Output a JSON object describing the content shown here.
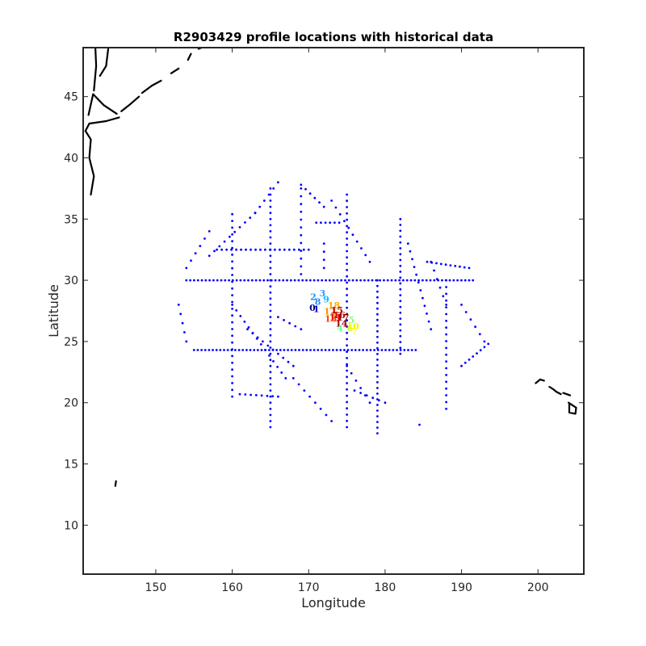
{
  "chart_data": {
    "type": "scatter",
    "title": "R2903429 profile locations with historical data",
    "xlabel": "Longitude",
    "ylabel": "Latitude",
    "xlim": [
      140.5,
      206
    ],
    "ylim": [
      6,
      49
    ],
    "xticks": [
      150,
      160,
      170,
      180,
      190,
      200
    ],
    "yticks": [
      10,
      15,
      20,
      25,
      30,
      35,
      40,
      45
    ],
    "grid": false,
    "series": [
      {
        "kind": "historical",
        "color": "#0000ff",
        "tracks": [
          {
            "from": [
              154,
              30
            ],
            "to": [
              191.5,
              30
            ],
            "n": 75
          },
          {
            "from": [
              155,
              24.3
            ],
            "to": [
              184,
              24.3
            ],
            "n": 60
          },
          {
            "from": [
              165,
              37.5
            ],
            "to": [
              165,
              18
            ],
            "n": 40
          },
          {
            "from": [
              179,
              30
            ],
            "to": [
              179,
              17.5
            ],
            "n": 28
          },
          {
            "from": [
              182,
              35
            ],
            "to": [
              182,
              24
            ],
            "n": 24
          },
          {
            "from": [
              175,
              37
            ],
            "to": [
              175,
              18
            ],
            "n": 38
          },
          {
            "from": [
              188,
              30
            ],
            "to": [
              188,
              19.5
            ],
            "n": 20
          },
          {
            "from": [
              160,
              35.4
            ],
            "to": [
              160,
              20.5
            ],
            "n": 28
          },
          {
            "from": [
              158,
              32.5
            ],
            "to": [
              170,
              32.5
            ],
            "n": 20
          },
          {
            "from": [
              171,
              34.7
            ],
            "to": [
              174,
              34.7
            ],
            "n": 6
          },
          {
            "from": [
              154,
              31
            ],
            "to": [
              157,
              34
            ],
            "n": 6
          },
          {
            "from": [
              157,
              32
            ],
            "to": [
              163,
              35.5
            ],
            "n": 10
          },
          {
            "from": [
              163,
              35.5
            ],
            "to": [
              166,
              38
            ],
            "n": 6
          },
          {
            "from": [
              169,
              37.8
            ],
            "to": [
              172,
              36
            ],
            "n": 6
          },
          {
            "from": [
              173,
              36.5
            ],
            "to": [
              178,
              31.5
            ],
            "n": 10
          },
          {
            "from": [
              183,
              33
            ],
            "to": [
              186,
              26
            ],
            "n": 12
          },
          {
            "from": [
              160,
              28
            ],
            "to": [
              167,
              22
            ],
            "n": 14
          },
          {
            "from": [
              162,
              26
            ],
            "to": [
              168,
              23
            ],
            "n": 10
          },
          {
            "from": [
              168,
              22
            ],
            "to": [
              173,
              18.5
            ],
            "n": 8
          },
          {
            "from": [
              175,
              23
            ],
            "to": [
              178,
              20
            ],
            "n": 6
          },
          {
            "from": [
              190,
              23
            ],
            "to": [
              193.5,
              24.8
            ],
            "n": 8
          },
          {
            "from": [
              153,
              28
            ],
            "to": [
              154,
              25
            ],
            "n": 5
          },
          {
            "from": [
              169,
              37.5
            ],
            "to": [
              169,
              30.5
            ],
            "n": 12
          },
          {
            "from": [
              172,
              33
            ],
            "to": [
              172,
              31
            ],
            "n": 4
          },
          {
            "from": [
              166,
              27
            ],
            "to": [
              169,
              26
            ],
            "n": 5
          },
          {
            "from": [
              185.5,
              31.5
            ],
            "to": [
              191,
              31
            ],
            "n": 10
          },
          {
            "from": [
              190,
              28
            ],
            "to": [
              193,
              25
            ],
            "n": 6
          },
          {
            "from": [
              161,
              20.7
            ],
            "to": [
              166,
              20.5
            ],
            "n": 8
          },
          {
            "from": [
              176,
              21
            ],
            "to": [
              180,
              20
            ],
            "n": 6
          },
          {
            "from": [
              184.5,
              18.2
            ],
            "to": [
              184.5,
              18.2
            ],
            "n": 1
          },
          {
            "from": [
              186,
              31.5
            ],
            "to": [
              188,
              28
            ],
            "n": 6
          }
        ]
      },
      {
        "kind": "float-profile",
        "points": [
          {
            "lon": 170.6,
            "lat": 28.6,
            "label": "2",
            "color": "#1e90ff"
          },
          {
            "lon": 171.2,
            "lat": 28.2,
            "label": "8",
            "color": "#1e90ff"
          },
          {
            "lon": 171.8,
            "lat": 28.9,
            "label": "3",
            "color": "#3399ff"
          },
          {
            "lon": 172.3,
            "lat": 28.4,
            "label": "9",
            "color": "#00bfff"
          },
          {
            "lon": 171.0,
            "lat": 27.6,
            "label": "1",
            "color": "#0000cc"
          },
          {
            "lon": 170.5,
            "lat": 27.7,
            "label": "0",
            "color": "#00008b"
          },
          {
            "lon": 172.8,
            "lat": 27.4,
            "label": "12",
            "color": "#ff8c00"
          },
          {
            "lon": 173.3,
            "lat": 27.9,
            "label": "18",
            "color": "#ffa500"
          },
          {
            "lon": 172.9,
            "lat": 26.8,
            "label": "13",
            "color": "#ff4500"
          },
          {
            "lon": 173.5,
            "lat": 26.9,
            "label": "11",
            "color": "#ff0000"
          },
          {
            "lon": 174.0,
            "lat": 27.1,
            "label": "16",
            "color": "#cc0000"
          },
          {
            "lon": 173.7,
            "lat": 27.5,
            "label": "15",
            "color": "#b00000"
          },
          {
            "lon": 174.5,
            "lat": 26.9,
            "label": "17",
            "color": "#8b0000"
          },
          {
            "lon": 174.3,
            "lat": 26.4,
            "label": "14",
            "color": "#a00000"
          },
          {
            "lon": 175.6,
            "lat": 26.7,
            "label": "5",
            "color": "#7fff7f"
          },
          {
            "lon": 174.1,
            "lat": 26.0,
            "label": "4",
            "color": "#66ff99"
          },
          {
            "lon": 175.4,
            "lat": 26.0,
            "label": "6",
            "color": "#ccff33"
          },
          {
            "lon": 176.0,
            "lat": 25.8,
            "label": "7",
            "color": "#ffff00"
          },
          {
            "lon": 175.8,
            "lat": 26.2,
            "label": "10",
            "color": "#e6ff00"
          }
        ]
      }
    ],
    "coastlines": [
      [
        [
          141.5,
          37
        ],
        [
          141.9,
          38.5
        ],
        [
          141.3,
          40
        ],
        [
          141.5,
          41.5
        ],
        [
          140.8,
          42.2
        ],
        [
          141.3,
          42.8
        ],
        [
          143.5,
          43
        ],
        [
          145.2,
          43.3
        ]
      ],
      [
        [
          141.2,
          43.5
        ],
        [
          141.8,
          45.2
        ],
        [
          143.2,
          44.3
        ],
        [
          144.9,
          43.6
        ]
      ],
      [
        [
          141.9,
          45.5
        ],
        [
          142.2,
          47.5
        ],
        [
          142.1,
          49
        ]
      ],
      [
        [
          143.8,
          49
        ],
        [
          143.5,
          47.5
        ],
        [
          142.7,
          46.7
        ]
      ],
      [
        [
          145.5,
          43.8
        ],
        [
          146.5,
          44.3
        ],
        [
          147.8,
          45
        ]
      ],
      [
        [
          148.2,
          45.3
        ],
        [
          149.5,
          45.9
        ],
        [
          150.7,
          46.3
        ]
      ],
      [
        [
          152,
          46.9
        ],
        [
          153,
          47.3
        ]
      ],
      [
        [
          154.2,
          48
        ],
        [
          154.6,
          48.5
        ]
      ],
      [
        [
          155.6,
          48.9
        ],
        [
          156,
          49
        ]
      ],
      [
        [
          144.7,
          13.2
        ],
        [
          144.8,
          13.6
        ]
      ],
      [
        [
          199.7,
          21.6
        ],
        [
          200.3,
          21.9
        ],
        [
          200.8,
          21.8
        ]
      ],
      [
        [
          201.5,
          21.3
        ],
        [
          202,
          21.1
        ],
        [
          202.4,
          20.9
        ],
        [
          203,
          20.7
        ]
      ],
      [
        [
          203.3,
          20.8
        ],
        [
          204.2,
          20.6
        ]
      ],
      [
        [
          204,
          20
        ],
        [
          205,
          19.6
        ],
        [
          204.9,
          19.1
        ],
        [
          204.1,
          19.2
        ],
        [
          204.1,
          19.9
        ]
      ]
    ]
  }
}
